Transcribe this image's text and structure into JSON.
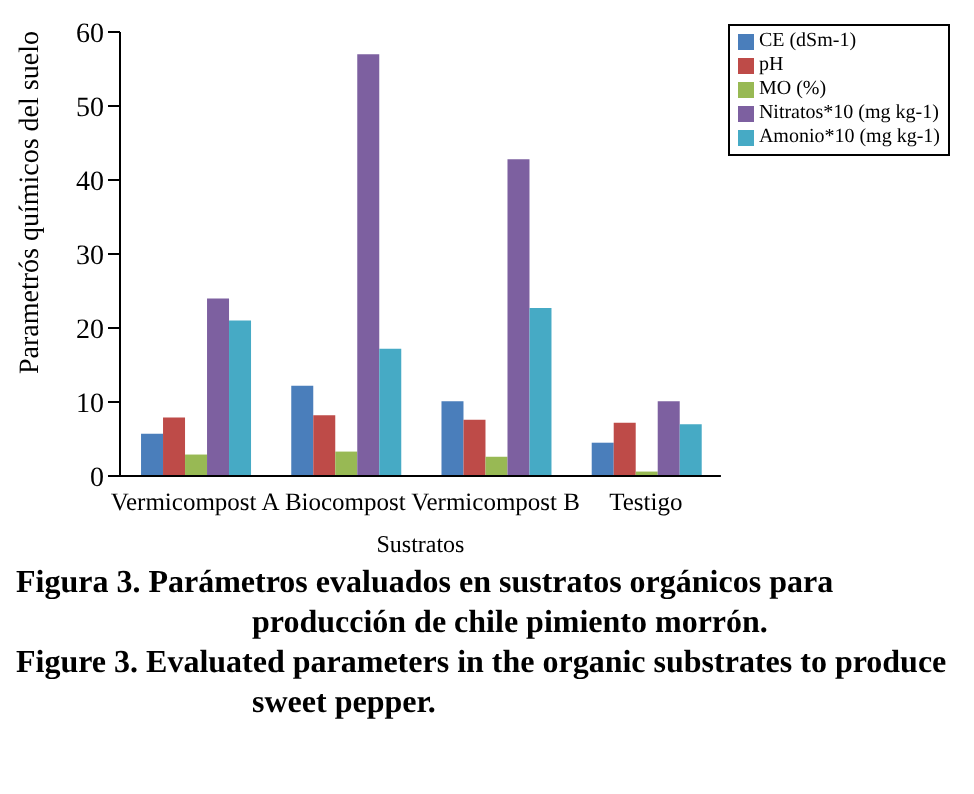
{
  "chart_data": {
    "type": "bar",
    "xlabel": "Sustratos",
    "ylabel": "Parametrós químicos del suelo",
    "categories": [
      "Vermicompost A",
      "Biocompost",
      "Vermicompost B",
      "Testigo"
    ],
    "series": [
      {
        "name": "CE (dSm-1)",
        "color": "#4a7ebb",
        "values": [
          5.7,
          12.2,
          10.1,
          4.5
        ]
      },
      {
        "name": "pH",
        "color": "#be4b48",
        "values": [
          7.9,
          8.2,
          7.6,
          7.2
        ]
      },
      {
        "name": "MO (%)",
        "color": "#98b954",
        "values": [
          2.9,
          3.3,
          2.6,
          0.6
        ]
      },
      {
        "name": "Nitratos*10 (mg kg-1)",
        "color": "#7d60a0",
        "values": [
          24,
          57,
          42.8,
          10.1
        ]
      },
      {
        "name": "Amonio*10 (mg kg-1)",
        "color": "#46aac5",
        "values": [
          21,
          17.2,
          22.7,
          7.0
        ]
      }
    ],
    "ylim": [
      0,
      60
    ],
    "yticks": [
      0,
      10,
      20,
      30,
      40,
      50,
      60
    ],
    "grid": false,
    "legend": "top right",
    "annotations": [
      "Figura 3. Parámetros evaluados en sustratos orgánicos para producción de chile pimiento morrón.",
      "Figure 3. Evaluated parameters in the organic substrates to produce sweet pepper."
    ]
  }
}
